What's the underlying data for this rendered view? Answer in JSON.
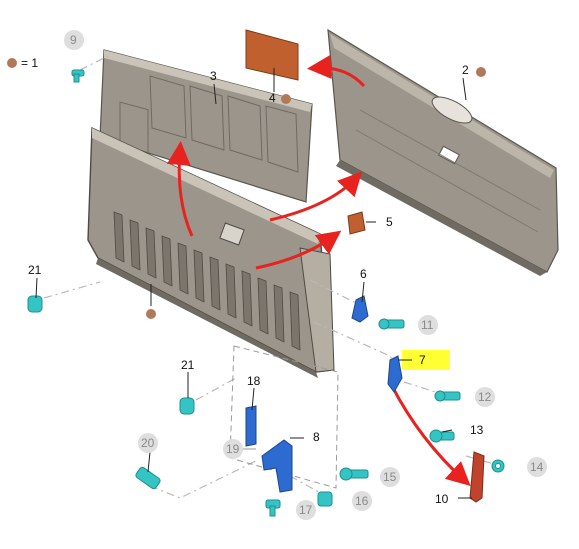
{
  "legend": {
    "marker_color": "#b07a5a",
    "text": "= 1"
  },
  "callouts": {
    "c2": "2",
    "c3": "3",
    "c4": "4",
    "c5": "5",
    "c6": "6",
    "c7": "7",
    "c8": "8",
    "c9": "9",
    "c10": "10",
    "c11": "11",
    "c12": "12",
    "c13": "13",
    "c14": "14",
    "c15": "15",
    "c16": "16",
    "c17": "17",
    "c18": "18",
    "c19": "19",
    "c20": "20",
    "c21a": "21",
    "c21b": "21"
  },
  "colors": {
    "panel": "#9c958b",
    "panel_dark": "#6f6a62",
    "panel_light": "#c9c3b8",
    "arrow": "#e8231f",
    "highlight": "#ffff33",
    "bolt": "#35c4c4",
    "bracket_blue": "#2e6bd1",
    "latch_red": "#c0442b",
    "badge_grey": "#dedede",
    "marker_brown": "#b07a5a",
    "leader": "#999999"
  }
}
